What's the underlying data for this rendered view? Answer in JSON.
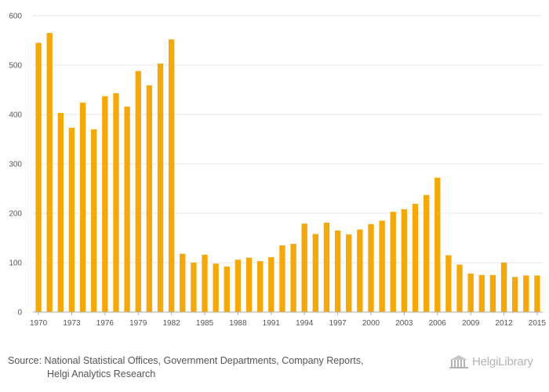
{
  "chart_data": {
    "type": "bar",
    "title": "",
    "xlabel": "",
    "ylabel": "",
    "ylim": [
      0,
      600
    ],
    "yticks": [
      0,
      100,
      200,
      300,
      400,
      500,
      600
    ],
    "grid": true,
    "bar_color": "#F5A80A",
    "categories": [
      "1970",
      "1971",
      "1972",
      "1973",
      "1974",
      "1975",
      "1976",
      "1977",
      "1978",
      "1979",
      "1980",
      "1981",
      "1982",
      "1983",
      "1984",
      "1985",
      "1986",
      "1987",
      "1988",
      "1989",
      "1990",
      "1991",
      "1992",
      "1993",
      "1994",
      "1995",
      "1996",
      "1997",
      "1998",
      "1999",
      "2000",
      "2001",
      "2002",
      "2003",
      "2004",
      "2005",
      "2006",
      "2007",
      "2008",
      "2009",
      "2010",
      "2011",
      "2012",
      "2013",
      "2014",
      "2015"
    ],
    "xtick_labels": [
      "1970",
      "1973",
      "1976",
      "1979",
      "1982",
      "1985",
      "1988",
      "1991",
      "1994",
      "1997",
      "2000",
      "2003",
      "2006",
      "2009",
      "2012",
      "2015"
    ],
    "values": [
      545,
      565,
      403,
      373,
      424,
      370,
      437,
      443,
      416,
      488,
      459,
      503,
      552,
      118,
      100,
      116,
      98,
      92,
      106,
      110,
      103,
      111,
      135,
      138,
      179,
      158,
      181,
      165,
      157,
      167,
      178,
      185,
      203,
      208,
      219,
      237,
      272,
      115,
      96,
      78,
      75,
      75,
      100,
      71,
      74,
      74
    ]
  },
  "source": {
    "line1": "Source: National Statistical Offices, Government Departments, Company Reports,",
    "line2": "Helgi Analytics Research"
  },
  "logo": {
    "text": "HelgiLibrary"
  }
}
